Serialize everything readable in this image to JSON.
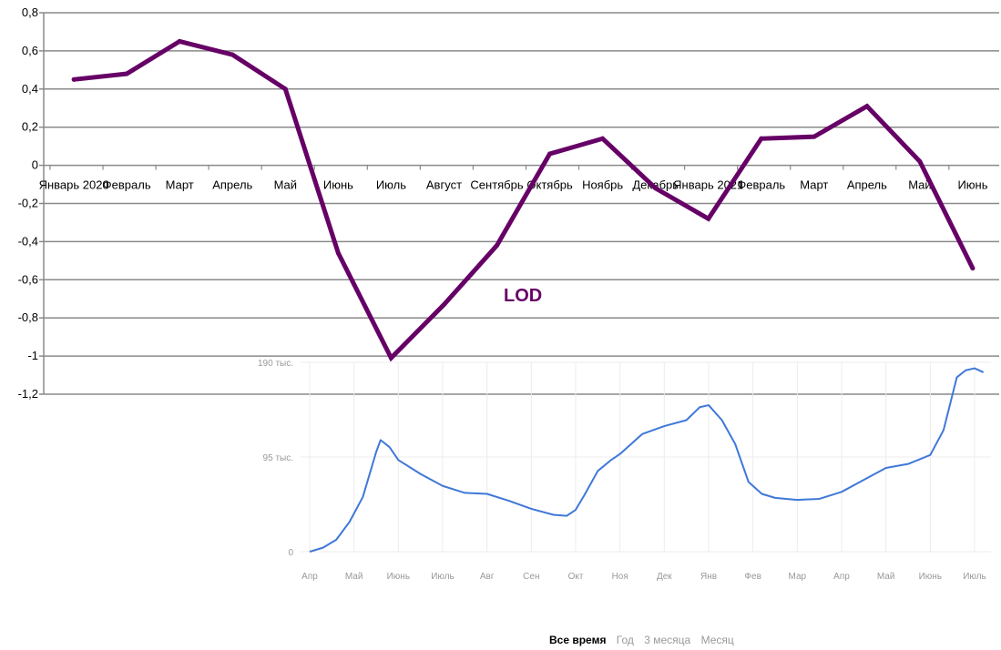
{
  "chart_data": [
    {
      "type": "line",
      "title": "LOD",
      "y_tick_labels": [
        "0,8",
        "0,6",
        "0,4",
        "0,2",
        "0",
        "-0,2",
        "-0,4",
        "-0,6",
        "-0,8",
        "-1",
        "-1,2"
      ],
      "y_ticks": [
        0.8,
        0.6,
        0.4,
        0.2,
        0,
        -0.2,
        -0.4,
        -0.6,
        -0.8,
        -1,
        -1.2
      ],
      "ylim": [
        -1.2,
        0.8
      ],
      "categories": [
        "Январь 2020",
        "Февраль",
        "Март",
        "Апрель",
        "Май",
        "Июнь",
        "Июль",
        "Август",
        "Сентябрь",
        "Октябрь",
        "Ноябрь",
        "Декабрь",
        "Январь 2021",
        "Февраль",
        "Март",
        "Апрель",
        "Май",
        "Июнь"
      ],
      "series": [
        {
          "name": "LOD",
          "color": "#660066",
          "values": [
            0.45,
            0.48,
            0.65,
            0.58,
            0.4,
            -0.46,
            -1.01,
            -0.73,
            -0.42,
            0.06,
            0.14,
            -0.12,
            -0.28,
            0.14,
            0.15,
            0.31,
            0.02,
            -0.54
          ]
        }
      ],
      "grid": true
    },
    {
      "type": "line",
      "y_tick_labels": [
        "190 тыс.",
        "95 тыс.",
        "0"
      ],
      "ylim": [
        0,
        190
      ],
      "x_tick_labels": [
        "Апр",
        "Май",
        "Июнь",
        "Июль",
        "Авг",
        "Сен",
        "Окт",
        "Ноя",
        "Дек",
        "Янв",
        "Фев",
        "Мар",
        "Апр",
        "Май",
        "Июнь",
        "Июль"
      ],
      "series": [
        {
          "color": "#3f78d8",
          "x": [
            0,
            0.3,
            0.6,
            0.9,
            1.2,
            1.5,
            1.6,
            1.8,
            2.0,
            2.5,
            3.0,
            3.5,
            4.0,
            4.5,
            5.0,
            5.5,
            5.8,
            6.0,
            6.2,
            6.5,
            6.8,
            7.0,
            7.5,
            8.0,
            8.5,
            8.8,
            9.0,
            9.3,
            9.6,
            9.9,
            10.2,
            10.5,
            11.0,
            11.5,
            12.0,
            12.5,
            13.0,
            13.5,
            14.0,
            14.3,
            14.6,
            14.8,
            15.0,
            15.2
          ],
          "values": [
            0,
            4,
            12,
            30,
            55,
            100,
            112,
            105,
            92,
            78,
            66,
            59,
            58,
            51,
            43,
            37,
            36,
            42,
            57,
            81,
            92,
            98,
            118,
            126,
            132,
            145,
            147,
            132,
            108,
            70,
            58,
            54,
            52,
            53,
            60,
            72,
            84,
            88,
            97,
            122,
            175,
            182,
            184,
            180
          ]
        }
      ],
      "grid": true
    }
  ],
  "range_buttons": {
    "all": "Все время",
    "year": "Год",
    "three_months": "3 месяца",
    "month": "Месяц"
  }
}
